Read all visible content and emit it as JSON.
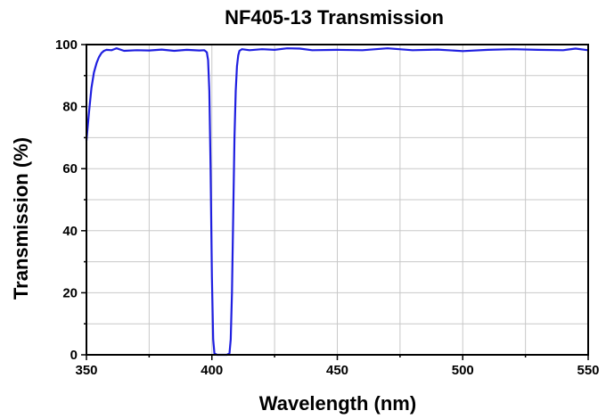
{
  "chart_data": {
    "type": "line",
    "title": "NF405-13 Transmission",
    "xlabel": "Wavelength (nm)",
    "ylabel": "Transmission (%)",
    "xlim": [
      350,
      550
    ],
    "ylim": [
      0,
      100
    ],
    "xticks": [
      350,
      400,
      450,
      500,
      550
    ],
    "yticks": [
      0,
      20,
      40,
      60,
      80,
      100
    ],
    "grid": true,
    "line_color": "#1f1fe0",
    "series": [
      {
        "x": [
          350,
          351,
          352,
          353,
          354,
          355,
          356,
          357,
          358,
          360,
          362,
          365,
          370,
          375,
          380,
          385,
          390,
          395,
          397,
          398,
          398.5,
          399,
          399.5,
          400,
          400.5,
          401,
          402,
          405,
          406,
          407,
          407.5,
          408,
          408.5,
          409,
          409.5,
          410,
          410.5,
          411,
          412,
          415,
          420,
          425,
          430,
          435,
          440,
          450,
          460,
          470,
          480,
          490,
          500,
          510,
          520,
          530,
          540,
          545,
          550
        ],
        "y": [
          69,
          78,
          86,
          91,
          94,
          96,
          97.3,
          98,
          98.3,
          98.2,
          98.8,
          98,
          98.2,
          98.1,
          98.4,
          98,
          98.3,
          98.1,
          98.2,
          97.5,
          95,
          85,
          60,
          25,
          5,
          0.5,
          0,
          0,
          0,
          0.5,
          5,
          20,
          45,
          70,
          85,
          93,
          96.5,
          98,
          98.5,
          98.2,
          98.5,
          98.3,
          98.8,
          98.7,
          98.2,
          98.3,
          98.2,
          98.8,
          98.2,
          98.4,
          97.9,
          98.3,
          98.5,
          98.3,
          98.2,
          98.7,
          98.2
        ]
      }
    ]
  }
}
